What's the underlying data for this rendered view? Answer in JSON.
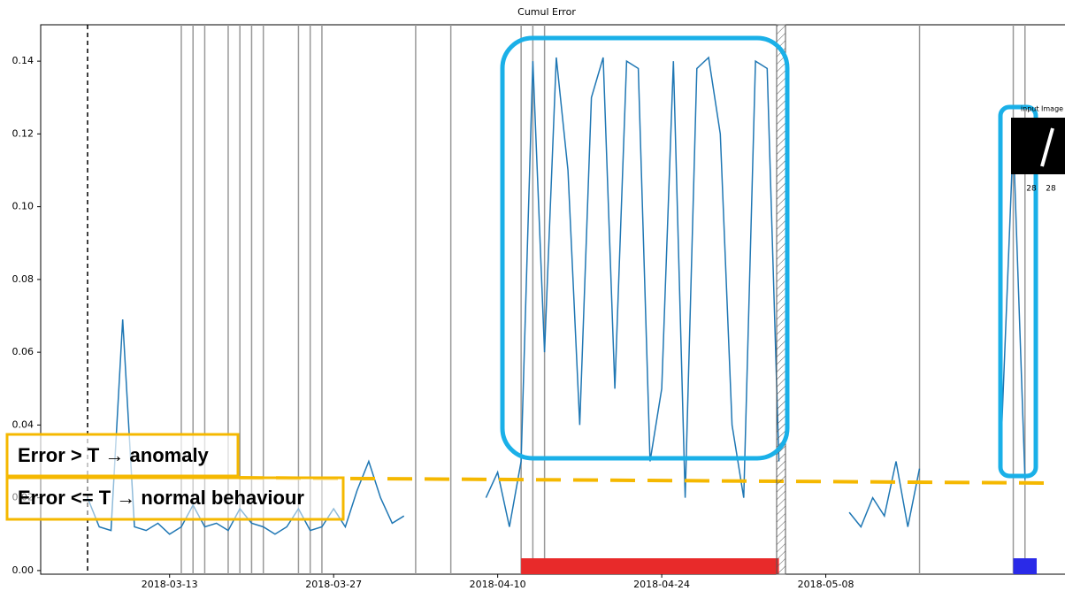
{
  "chart_data": {
    "type": "line",
    "title": "Cumul Error",
    "x": [
      "2018-03-06",
      "2018-03-07",
      "2018-03-08",
      "2018-03-09",
      "2018-03-10",
      "2018-03-11",
      "2018-03-12",
      "2018-03-13",
      "2018-03-14",
      "2018-03-15",
      "2018-03-16",
      "2018-03-17",
      "2018-03-18",
      "2018-03-19",
      "2018-03-20",
      "2018-03-21",
      "2018-03-22",
      "2018-03-23",
      "2018-03-24",
      "2018-03-25",
      "2018-03-26",
      "2018-03-27",
      "2018-03-28",
      "2018-03-29",
      "2018-03-30",
      "2018-03-31",
      "2018-04-01",
      "2018-04-02",
      "2018-04-05",
      "2018-04-09",
      "2018-04-10",
      "2018-04-11",
      "2018-04-12",
      "2018-04-13",
      "2018-04-14",
      "2018-04-15",
      "2018-04-16",
      "2018-04-17",
      "2018-04-18",
      "2018-04-19",
      "2018-04-20",
      "2018-04-21",
      "2018-04-22",
      "2018-04-23",
      "2018-04-24",
      "2018-04-25",
      "2018-04-26",
      "2018-04-27",
      "2018-04-28",
      "2018-04-29",
      "2018-04-30",
      "2018-05-01",
      "2018-05-02",
      "2018-05-03",
      "2018-05-04",
      "2018-05-07",
      "2018-05-10",
      "2018-05-11",
      "2018-05-12",
      "2018-05-13",
      "2018-05-14",
      "2018-05-15",
      "2018-05-16",
      "2018-05-20",
      "2018-05-23",
      "2018-05-24",
      "2018-05-25"
    ],
    "series": [
      {
        "color": "#1f77b4",
        "values": [
          0.02,
          0.012,
          0.011,
          0.069,
          0.012,
          0.011,
          0.013,
          0.01,
          0.012,
          0.018,
          0.012,
          0.013,
          0.011,
          0.017,
          0.013,
          0.012,
          0.01,
          0.012,
          0.017,
          0.011,
          0.012,
          0.017,
          0.012,
          0.022,
          0.03,
          0.02,
          0.013,
          0.015,
          null,
          0.02,
          0.027,
          0.012,
          0.03,
          0.14,
          0.06,
          0.141,
          0.11,
          0.04,
          0.13,
          0.141,
          0.05,
          0.14,
          0.138,
          0.03,
          0.05,
          0.14,
          0.02,
          0.138,
          0.141,
          0.12,
          0.04,
          0.02,
          0.14,
          0.138,
          0.03,
          null,
          0.016,
          0.012,
          0.02,
          0.015,
          0.03,
          0.012,
          0.028,
          null,
          0.038,
          0.119,
          0.025
        ]
      }
    ],
    "xlim": [
      "2018-03-02",
      "2018-05-30"
    ],
    "xticks": [
      "2018-03-13",
      "2018-03-27",
      "2018-04-10",
      "2018-04-24",
      "2018-05-08"
    ],
    "ylim": [
      -0.001,
      0.15
    ],
    "yticks": [
      {
        "value": 0,
        "label": "0.00"
      },
      {
        "value": 0.02,
        "label": "0.02"
      },
      {
        "value": 0.04,
        "label": "0.04"
      },
      {
        "value": 0.06,
        "label": "0.06"
      },
      {
        "value": 0.08,
        "label": "0.08"
      },
      {
        "value": 0.1,
        "label": "0.10"
      },
      {
        "value": 0.12,
        "label": "0.12"
      },
      {
        "value": 0.14,
        "label": "0.14"
      }
    ],
    "start_line": "2018-03-06",
    "event_lines": [
      "2018-03-14",
      "2018-03-15",
      "2018-03-16",
      "2018-03-18",
      "2018-03-19",
      "2018-03-20",
      "2018-03-21",
      "2018-03-24",
      "2018-03-25",
      "2018-03-26",
      "2018-04-03",
      "2018-04-06",
      "2018-04-12",
      "2018-04-13",
      "2018-04-14",
      "2018-05-16",
      "2018-05-24",
      "2018-05-25"
    ],
    "threshold": 0.0255,
    "threshold_color": "#f5b800",
    "periods": [
      {
        "start": "2018-04-12",
        "end": "2018-05-04",
        "color": "#e82a2a"
      },
      {
        "start": "2018-05-24",
        "end": "2018-05-26",
        "color": "#2a2ae8"
      }
    ],
    "annotations": [
      "Error > T → anomaly",
      "Error <= T → normal behaviour"
    ]
  },
  "inset": {
    "title": "input Image",
    "width": "28",
    "height": "28"
  }
}
